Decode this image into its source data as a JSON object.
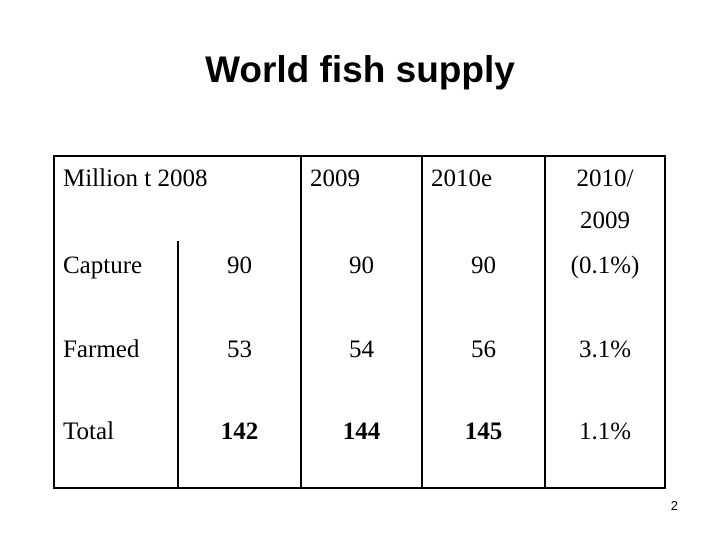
{
  "slide": {
    "title": "World fish supply",
    "page_number": "2"
  },
  "table": {
    "header": {
      "unit_label": "Million t",
      "col_2008": "2008",
      "col_2009": "2009",
      "col_2010e": "2010e",
      "col_ratio_line1": "2010/",
      "col_ratio_line2": "2009"
    },
    "rows": [
      {
        "label": "Capture",
        "v2008": "90",
        "v2009": "90",
        "v2010e": "90",
        "change": "(0.1%)"
      },
      {
        "label": "Farmed",
        "v2008": "53",
        "v2009": "54",
        "v2010e": "56",
        "change": "3.1%"
      },
      {
        "label": "Total",
        "v2008": "142",
        "v2009": "144",
        "v2010e": "145",
        "change": "1.1%"
      }
    ]
  }
}
